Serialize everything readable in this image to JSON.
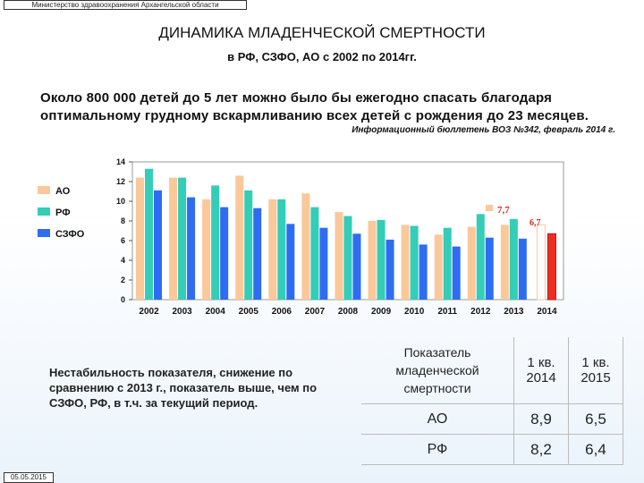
{
  "header": {
    "ministry": "Министерство здравоохранения Архангельской области",
    "title": "ДИНАМИКА МЛАДЕНЧЕСКОЙ СМЕРТНОСТИ",
    "subtitle": "в РФ, СЗФО, АО с 2002 по 2014гг."
  },
  "quote": "Около 800 000 детей до 5 лет можно было бы ежегодно спасать благодаря оптимальному грудному вскармливанию всех детей с рождения до 23 месяцев.",
  "source": "Информационный бюллетень ВОЗ №342, февраль 2014 г.",
  "chart_data": {
    "type": "bar",
    "categories": [
      "2002",
      "2003",
      "2004",
      "2005",
      "2006",
      "2007",
      "2008",
      "2009",
      "2010",
      "2011",
      "2012",
      "2013",
      "2014"
    ],
    "series": [
      {
        "name": "АО",
        "color": "#fbc89a",
        "values": [
          12.4,
          12.4,
          10.2,
          12.6,
          10.2,
          10.8,
          8.9,
          8.0,
          7.6,
          6.6,
          7.4,
          7.6,
          null
        ]
      },
      {
        "name": "РФ",
        "color": "#33cdb8",
        "values": [
          13.3,
          12.4,
          11.6,
          11.1,
          10.2,
          9.4,
          8.5,
          8.1,
          7.5,
          7.3,
          8.7,
          8.2,
          null
        ]
      },
      {
        "name": "СЗФО",
        "color": "#2f6cf2",
        "values": [
          11.1,
          10.4,
          9.4,
          9.3,
          7.7,
          7.3,
          6.7,
          6.1,
          5.6,
          5.4,
          6.3,
          6.2,
          null
        ]
      },
      {
        "name": "",
        "color": "#ee2d22",
        "values": [
          null,
          null,
          null,
          null,
          null,
          null,
          null,
          null,
          null,
          null,
          null,
          null,
          6.7
        ]
      }
    ],
    "annotations": [
      {
        "text": "7,7",
        "color": "#d42a1c"
      },
      {
        "text": "6,7",
        "color": "#d42a1c"
      }
    ],
    "ylim": [
      0,
      14
    ],
    "yticks": [
      0,
      2,
      4,
      6,
      8,
      10,
      12,
      14
    ],
    "legend": "left"
  },
  "note": "Нестабильность показателя, снижение по сравнению с 2013 г., показатель выше, чем по СЗФО, РФ, в  т.ч. за текущий период.",
  "table": {
    "headers": [
      "Показатель младенческой смертности",
      "1 кв. 2014",
      "1 кв. 2015"
    ],
    "rows": [
      [
        "АО",
        "8,9",
        "6,5"
      ],
      [
        "РФ",
        "8,2",
        "6,4"
      ]
    ]
  },
  "footer": {
    "date": "05.05.2015"
  }
}
